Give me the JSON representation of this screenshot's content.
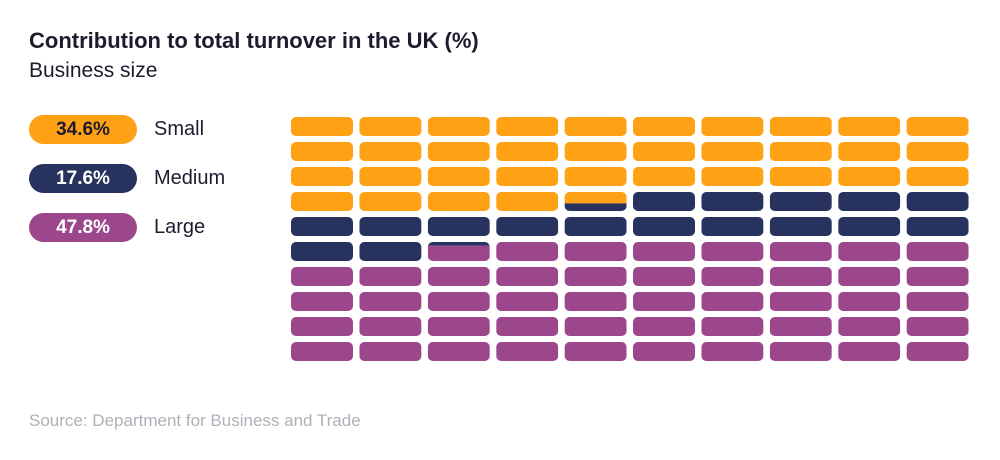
{
  "chart_data": {
    "type": "waffle",
    "title": "Contribution to total turnover in the UK (%)",
    "subtitle": "Business size",
    "grid": [
      10,
      10
    ],
    "series": [
      {
        "name": "Small",
        "value": 34.6,
        "label": "34.6%",
        "color": "#FFA114"
      },
      {
        "name": "Medium",
        "value": 17.6,
        "label": "17.6%",
        "color": "#27325E"
      },
      {
        "name": "Large",
        "value": 47.8,
        "label": "47.8%",
        "color": "#9C478C"
      }
    ],
    "legend_position": "left",
    "source": "Source: Department for Business and Trade"
  }
}
